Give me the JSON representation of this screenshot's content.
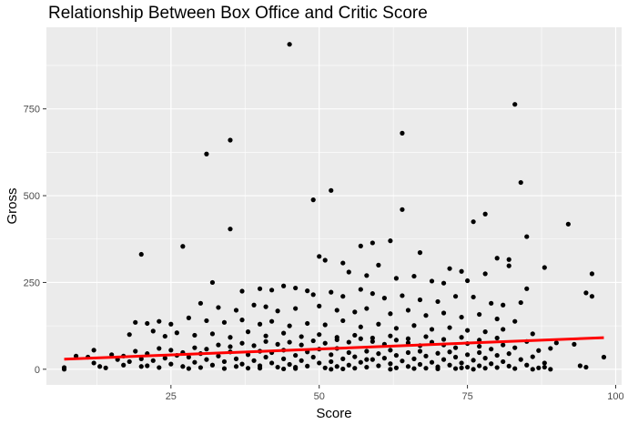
{
  "chart_data": {
    "type": "scatter",
    "title": "Relationship Between Box Office and Critic Score",
    "xlabel": "Score",
    "ylabel": "Gross",
    "xlim": [
      4,
      101
    ],
    "ylim": [
      -45,
      985
    ],
    "x_ticks": [
      25,
      50,
      75,
      100
    ],
    "y_ticks": [
      0,
      250,
      500,
      750
    ],
    "x_tick_labels": [
      "25",
      "50",
      "75",
      "100"
    ],
    "y_tick_labels": [
      "0",
      "250",
      "500",
      "750"
    ],
    "grid": true,
    "legend": "none",
    "point_color": "#000000",
    "trend_color": "#ff0000",
    "panel_color": "#ebebeb",
    "grid_color": "#ffffff",
    "trend_line": {
      "x": [
        7,
        98
      ],
      "y": [
        29,
        91
      ]
    },
    "points": [
      [
        45,
        936
      ],
      [
        83,
        763
      ],
      [
        35,
        660
      ],
      [
        64,
        680
      ],
      [
        31,
        620
      ],
      [
        84,
        538
      ],
      [
        52,
        515
      ],
      [
        49,
        488
      ],
      [
        64,
        460
      ],
      [
        76,
        425
      ],
      [
        78,
        447
      ],
      [
        92,
        418
      ],
      [
        35,
        404
      ],
      [
        85,
        382
      ],
      [
        62,
        370
      ],
      [
        57,
        355
      ],
      [
        59,
        364
      ],
      [
        67,
        336
      ],
      [
        27,
        354
      ],
      [
        20,
        331
      ],
      [
        80,
        320
      ],
      [
        82,
        316
      ],
      [
        50,
        325
      ],
      [
        51,
        314
      ],
      [
        54,
        306
      ],
      [
        60,
        300
      ],
      [
        88,
        293
      ],
      [
        96,
        275
      ],
      [
        72,
        290
      ],
      [
        74,
        282
      ],
      [
        78,
        275
      ],
      [
        82,
        298
      ],
      [
        55,
        280
      ],
      [
        58,
        270
      ],
      [
        63,
        262
      ],
      [
        66,
        268
      ],
      [
        69,
        254
      ],
      [
        71,
        248
      ],
      [
        75,
        255
      ],
      [
        85,
        232
      ],
      [
        95,
        220
      ],
      [
        96,
        210
      ],
      [
        32,
        250
      ],
      [
        37,
        225
      ],
      [
        40,
        232
      ],
      [
        42,
        228
      ],
      [
        44,
        240
      ],
      [
        46,
        234
      ],
      [
        48,
        226
      ],
      [
        49,
        215
      ],
      [
        52,
        222
      ],
      [
        54,
        210
      ],
      [
        57,
        230
      ],
      [
        59,
        218
      ],
      [
        61,
        205
      ],
      [
        64,
        212
      ],
      [
        67,
        200
      ],
      [
        70,
        195
      ],
      [
        73,
        210
      ],
      [
        76,
        208
      ],
      [
        79,
        190
      ],
      [
        81,
        185
      ],
      [
        84,
        192
      ],
      [
        30,
        190
      ],
      [
        33,
        178
      ],
      [
        36,
        170
      ],
      [
        39,
        185
      ],
      [
        41,
        180
      ],
      [
        43,
        168
      ],
      [
        46,
        175
      ],
      [
        50,
        182
      ],
      [
        53,
        170
      ],
      [
        56,
        165
      ],
      [
        58,
        175
      ],
      [
        62,
        160
      ],
      [
        65,
        170
      ],
      [
        68,
        155
      ],
      [
        71,
        162
      ],
      [
        74,
        150
      ],
      [
        77,
        158
      ],
      [
        80,
        145
      ],
      [
        83,
        138
      ],
      [
        19,
        135
      ],
      [
        21,
        132
      ],
      [
        23,
        138
      ],
      [
        25,
        130
      ],
      [
        28,
        148
      ],
      [
        31,
        140
      ],
      [
        34,
        135
      ],
      [
        37,
        142
      ],
      [
        40,
        130
      ],
      [
        42,
        138
      ],
      [
        45,
        125
      ],
      [
        48,
        132
      ],
      [
        51,
        128
      ],
      [
        54,
        140
      ],
      [
        57,
        122
      ],
      [
        60,
        130
      ],
      [
        63,
        118
      ],
      [
        66,
        126
      ],
      [
        69,
        115
      ],
      [
        72,
        120
      ],
      [
        75,
        112
      ],
      [
        78,
        108
      ],
      [
        81,
        115
      ],
      [
        86,
        102
      ],
      [
        18,
        100
      ],
      [
        22,
        110
      ],
      [
        24,
        95
      ],
      [
        26,
        105
      ],
      [
        29,
        98
      ],
      [
        32,
        102
      ],
      [
        35,
        92
      ],
      [
        38,
        108
      ],
      [
        41,
        96
      ],
      [
        44,
        104
      ],
      [
        47,
        94
      ],
      [
        50,
        100
      ],
      [
        53,
        92
      ],
      [
        56,
        98
      ],
      [
        59,
        90
      ],
      [
        62,
        96
      ],
      [
        65,
        88
      ],
      [
        68,
        94
      ],
      [
        71,
        86
      ],
      [
        74,
        92
      ],
      [
        77,
        84
      ],
      [
        80,
        90
      ],
      [
        85,
        80
      ],
      [
        90,
        76
      ],
      [
        93,
        72
      ],
      [
        12,
        55
      ],
      [
        15,
        42
      ],
      [
        17,
        38
      ],
      [
        19,
        52
      ],
      [
        21,
        45
      ],
      [
        23,
        60
      ],
      [
        25,
        55
      ],
      [
        27,
        48
      ],
      [
        29,
        62
      ],
      [
        31,
        58
      ],
      [
        33,
        70
      ],
      [
        35,
        65
      ],
      [
        37,
        75
      ],
      [
        39,
        68
      ],
      [
        41,
        80
      ],
      [
        43,
        72
      ],
      [
        45,
        78
      ],
      [
        47,
        70
      ],
      [
        49,
        82
      ],
      [
        51,
        75
      ],
      [
        53,
        85
      ],
      [
        55,
        78
      ],
      [
        57,
        88
      ],
      [
        59,
        80
      ],
      [
        61,
        72
      ],
      [
        63,
        84
      ],
      [
        65,
        76
      ],
      [
        67,
        68
      ],
      [
        69,
        78
      ],
      [
        71,
        70
      ],
      [
        73,
        62
      ],
      [
        75,
        74
      ],
      [
        77,
        66
      ],
      [
        79,
        58
      ],
      [
        81,
        70
      ],
      [
        83,
        62
      ],
      [
        87,
        54
      ],
      [
        89,
        60
      ],
      [
        7,
        5
      ],
      [
        7,
        0
      ],
      [
        9,
        38
      ],
      [
        11,
        35
      ],
      [
        12,
        18
      ],
      [
        13,
        8
      ],
      [
        14,
        4
      ],
      [
        16,
        28
      ],
      [
        17,
        12
      ],
      [
        18,
        22
      ],
      [
        20,
        30
      ],
      [
        21,
        10
      ],
      [
        22,
        25
      ],
      [
        23,
        5
      ],
      [
        24,
        32
      ],
      [
        25,
        15
      ],
      [
        26,
        40
      ],
      [
        27,
        8
      ],
      [
        28,
        35
      ],
      [
        29,
        20
      ],
      [
        30,
        45
      ],
      [
        30,
        5
      ],
      [
        31,
        28
      ],
      [
        32,
        12
      ],
      [
        33,
        38
      ],
      [
        34,
        22
      ],
      [
        35,
        50
      ],
      [
        36,
        8
      ],
      [
        36,
        30
      ],
      [
        37,
        15
      ],
      [
        38,
        42
      ],
      [
        38,
        3
      ],
      [
        39,
        25
      ],
      [
        40,
        52
      ],
      [
        40,
        10
      ],
      [
        41,
        35
      ],
      [
        42,
        18
      ],
      [
        42,
        48
      ],
      [
        43,
        6
      ],
      [
        44,
        30
      ],
      [
        44,
        55
      ],
      [
        45,
        14
      ],
      [
        46,
        40
      ],
      [
        46,
        2
      ],
      [
        47,
        25
      ],
      [
        48,
        50
      ],
      [
        48,
        9
      ],
      [
        49,
        35
      ],
      [
        50,
        18
      ],
      [
        50,
        58
      ],
      [
        51,
        4
      ],
      [
        52,
        42
      ],
      [
        52,
        22
      ],
      [
        53,
        60
      ],
      [
        53,
        8
      ],
      [
        54,
        30
      ],
      [
        55,
        12
      ],
      [
        55,
        48
      ],
      [
        56,
        3
      ],
      [
        56,
        36
      ],
      [
        57,
        20
      ],
      [
        58,
        52
      ],
      [
        58,
        6
      ],
      [
        59,
        28
      ],
      [
        60,
        45
      ],
      [
        60,
        10
      ],
      [
        61,
        32
      ],
      [
        62,
        16
      ],
      [
        62,
        55
      ],
      [
        63,
        4
      ],
      [
        63,
        40
      ],
      [
        64,
        24
      ],
      [
        65,
        48
      ],
      [
        65,
        8
      ],
      [
        66,
        30
      ],
      [
        67,
        14
      ],
      [
        67,
        52
      ],
      [
        68,
        3
      ],
      [
        68,
        38
      ],
      [
        69,
        20
      ],
      [
        70,
        46
      ],
      [
        70,
        7
      ],
      [
        71,
        28
      ],
      [
        72,
        12
      ],
      [
        72,
        50
      ],
      [
        73,
        2
      ],
      [
        73,
        35
      ],
      [
        74,
        18
      ],
      [
        75,
        42
      ],
      [
        75,
        6
      ],
      [
        76,
        26
      ],
      [
        77,
        10
      ],
      [
        77,
        48
      ],
      [
        78,
        3
      ],
      [
        78,
        32
      ],
      [
        79,
        16
      ],
      [
        80,
        40
      ],
      [
        80,
        5
      ],
      [
        81,
        22
      ],
      [
        82,
        9
      ],
      [
        82,
        45
      ],
      [
        83,
        2
      ],
      [
        84,
        28
      ],
      [
        85,
        12
      ],
      [
        86,
        36
      ],
      [
        87,
        4
      ],
      [
        88,
        18
      ],
      [
        88,
        6
      ],
      [
        89,
        0
      ],
      [
        94,
        10
      ],
      [
        95,
        6
      ],
      [
        98,
        35
      ],
      [
        20,
        8
      ],
      [
        34,
        2
      ],
      [
        46,
        6
      ],
      [
        58,
        28
      ],
      [
        66,
        2
      ],
      [
        74,
        4
      ],
      [
        54,
        1
      ],
      [
        40,
        3
      ],
      [
        28,
        2
      ],
      [
        62,
        0
      ],
      [
        70,
        1
      ],
      [
        76,
        0
      ],
      [
        86,
        0
      ],
      [
        44,
        1
      ],
      [
        52,
        0
      ]
    ]
  }
}
